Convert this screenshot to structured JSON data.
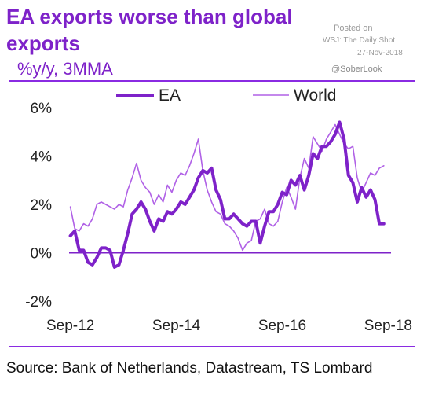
{
  "header": {
    "title": "EA exports worse than global exports",
    "subtitle": "%y/y, 3MMA"
  },
  "attribution": {
    "posted_on": "Posted on",
    "publication": "WSJ: The Daily Shot",
    "date": "27-Nov-2018",
    "handle": "@SoberLook"
  },
  "footer": {
    "source": "Source: Bank of Netherlands, Datastream, TS Lombard"
  },
  "colors": {
    "ea": "#7e22c9",
    "world": "#b061e6",
    "zero_line": "#7e22c9",
    "rule": "#8a2be2"
  },
  "chart_data": {
    "type": "line",
    "title": "EA exports worse than global exports",
    "subtitle": "%y/y, 3MMA",
    "x_tick_labels": [
      "Sep-12",
      "Sep-14",
      "Sep-16",
      "Sep-18"
    ],
    "x_tick_positions": [
      0,
      24,
      48,
      72
    ],
    "x_range": [
      -1,
      73
    ],
    "ylim": [
      -2,
      6
    ],
    "y_ticks": [
      -2,
      0,
      2,
      4,
      6
    ],
    "y_tick_labels": [
      "-2%",
      "0%",
      "2%",
      "4%",
      "6%"
    ],
    "legend_position": "top",
    "grid": false,
    "series": [
      {
        "name": "EA",
        "color": "#7e22c9",
        "x": [
          0,
          1,
          2,
          3,
          4,
          5,
          6,
          7,
          8,
          9,
          10,
          11,
          12,
          13,
          14,
          15,
          16,
          17,
          18,
          19,
          20,
          21,
          22,
          23,
          24,
          25,
          26,
          27,
          28,
          29,
          30,
          31,
          32,
          33,
          34,
          35,
          36,
          37,
          38,
          39,
          40,
          41,
          42,
          43,
          44,
          45,
          46,
          47,
          48,
          49,
          50,
          51,
          52,
          53,
          54,
          55,
          56,
          57,
          58,
          59,
          60,
          61,
          62,
          63,
          64,
          65,
          66,
          67,
          68,
          69,
          70,
          71
        ],
        "values": [
          0.7,
          0.9,
          0.1,
          0.1,
          -0.4,
          -0.5,
          -0.2,
          0.2,
          0.2,
          0.1,
          -0.6,
          -0.5,
          0.1,
          0.8,
          1.6,
          1.8,
          2.1,
          1.8,
          1.3,
          0.9,
          1.4,
          1.3,
          1.7,
          1.6,
          1.8,
          2.1,
          2.0,
          2.3,
          2.6,
          3.1,
          3.4,
          3.3,
          3.5,
          2.6,
          2.2,
          1.4,
          1.4,
          1.6,
          1.4,
          1.2,
          1.1,
          1.3,
          1.3,
          0.4,
          1.1,
          1.7,
          1.7,
          2.0,
          2.5,
          2.4,
          3.0,
          2.8,
          3.2,
          2.6,
          3.2,
          4.1,
          3.9,
          4.4,
          4.4,
          4.6,
          4.9,
          5.4,
          4.7,
          3.2,
          2.9,
          2.1,
          2.7,
          2.3,
          2.6,
          2.2,
          1.2,
          1.2
        ]
      },
      {
        "name": "World",
        "color": "#b061e6",
        "x": [
          0,
          1,
          2,
          3,
          4,
          5,
          6,
          7,
          8,
          9,
          10,
          11,
          12,
          13,
          14,
          15,
          16,
          17,
          18,
          19,
          20,
          21,
          22,
          23,
          24,
          25,
          26,
          27,
          28,
          29,
          30,
          31,
          32,
          33,
          34,
          35,
          36,
          37,
          38,
          39,
          40,
          41,
          42,
          43,
          44,
          45,
          46,
          47,
          48,
          49,
          50,
          51,
          52,
          53,
          54,
          55,
          56,
          57,
          58,
          59,
          60,
          61,
          62,
          63,
          64,
          65,
          66,
          67,
          68,
          69,
          70,
          71
        ],
        "values": [
          1.9,
          1.0,
          0.9,
          1.2,
          1.1,
          1.4,
          2.0,
          2.1,
          2.0,
          1.9,
          1.8,
          2.0,
          1.9,
          2.6,
          3.1,
          3.7,
          3.0,
          2.7,
          2.5,
          2.0,
          2.4,
          2.1,
          2.8,
          2.5,
          3.0,
          3.3,
          3.2,
          3.6,
          4.1,
          4.7,
          3.4,
          2.6,
          2.1,
          1.7,
          1.6,
          1.2,
          1.1,
          0.9,
          0.6,
          0.1,
          0.4,
          0.5,
          1.3,
          1.4,
          1.8,
          1.2,
          1.1,
          1.3,
          2.1,
          2.7,
          2.3,
          1.8,
          3.1,
          3.9,
          3.5,
          4.8,
          4.5,
          4.2,
          4.7,
          5.0,
          5.3,
          4.9,
          4.5,
          4.3,
          4.4,
          3.1,
          2.5,
          2.9,
          3.3,
          3.2,
          3.5,
          3.6
        ]
      }
    ]
  }
}
